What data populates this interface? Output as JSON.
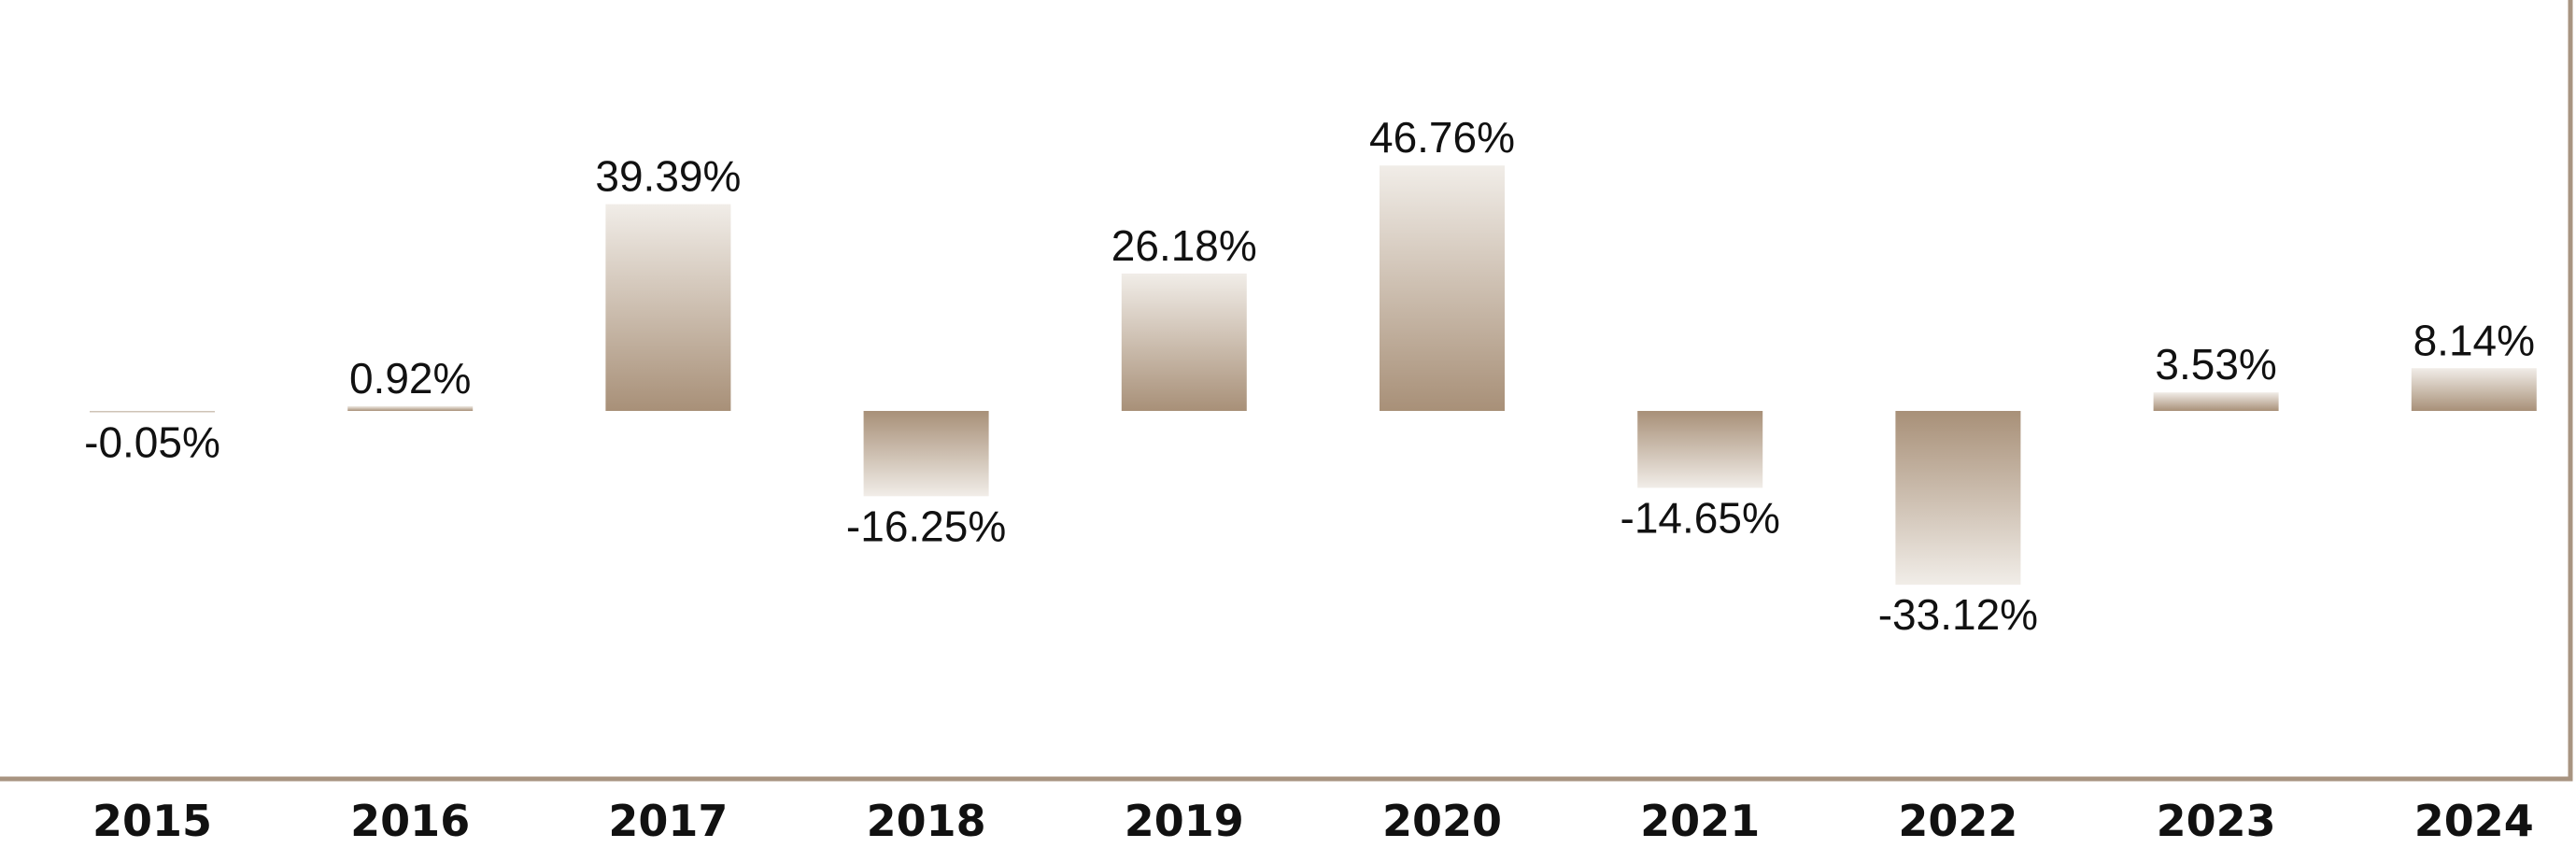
{
  "chart_data": {
    "type": "bar",
    "categories": [
      "2015",
      "2016",
      "2017",
      "2018",
      "2019",
      "2020",
      "2021",
      "2022",
      "2023",
      "2024"
    ],
    "values": [
      -0.05,
      0.92,
      39.39,
      -16.25,
      26.18,
      46.76,
      -14.65,
      -33.12,
      3.53,
      8.14
    ],
    "data_labels": [
      "-0.05%",
      "0.92%",
      "39.39%",
      "-16.25%",
      "26.18%",
      "46.76%",
      "-14.65%",
      "-33.12%",
      "3.53%",
      "8.14%"
    ],
    "title": "",
    "xlabel": "",
    "ylabel": "",
    "ylim": [
      -60,
      60
    ],
    "grid": false,
    "legend": "none",
    "colors": {
      "bar_base": "#a89078",
      "bar_light": "#f1ede8",
      "frame": "#a89481",
      "text": "#111111"
    }
  }
}
